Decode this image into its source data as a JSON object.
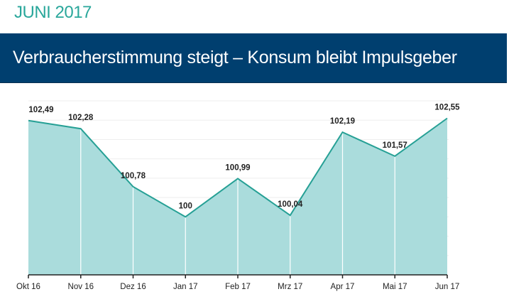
{
  "header": {
    "month": "JUNI 2017",
    "title": "Verbraucherstimmung steigt – Konsum bleibt Impulsgeber"
  },
  "colors": {
    "month": "#2aa79b",
    "banner": "#003f6f",
    "line": "#26a095",
    "fill": "#aadcdc"
  },
  "chart_data": {
    "type": "area",
    "title": "",
    "xlabel": "",
    "ylabel": "",
    "categories": [
      "Okt 16",
      "Nov 16",
      "Dez 16",
      "Jan 17",
      "Feb 17",
      "Mrz 17",
      "Apr 17",
      "Mai 17",
      "Jun 17"
    ],
    "values": [
      102.49,
      102.28,
      100.78,
      100,
      100.99,
      100.04,
      102.19,
      101.57,
      102.55
    ],
    "data_labels": [
      "102,49",
      "102,28",
      "100,78",
      "100",
      "100,99",
      "100,04",
      "102,19",
      "101,57",
      "102,55"
    ],
    "ylim": [
      98.5,
      103
    ],
    "grid": true,
    "legend": "none"
  }
}
